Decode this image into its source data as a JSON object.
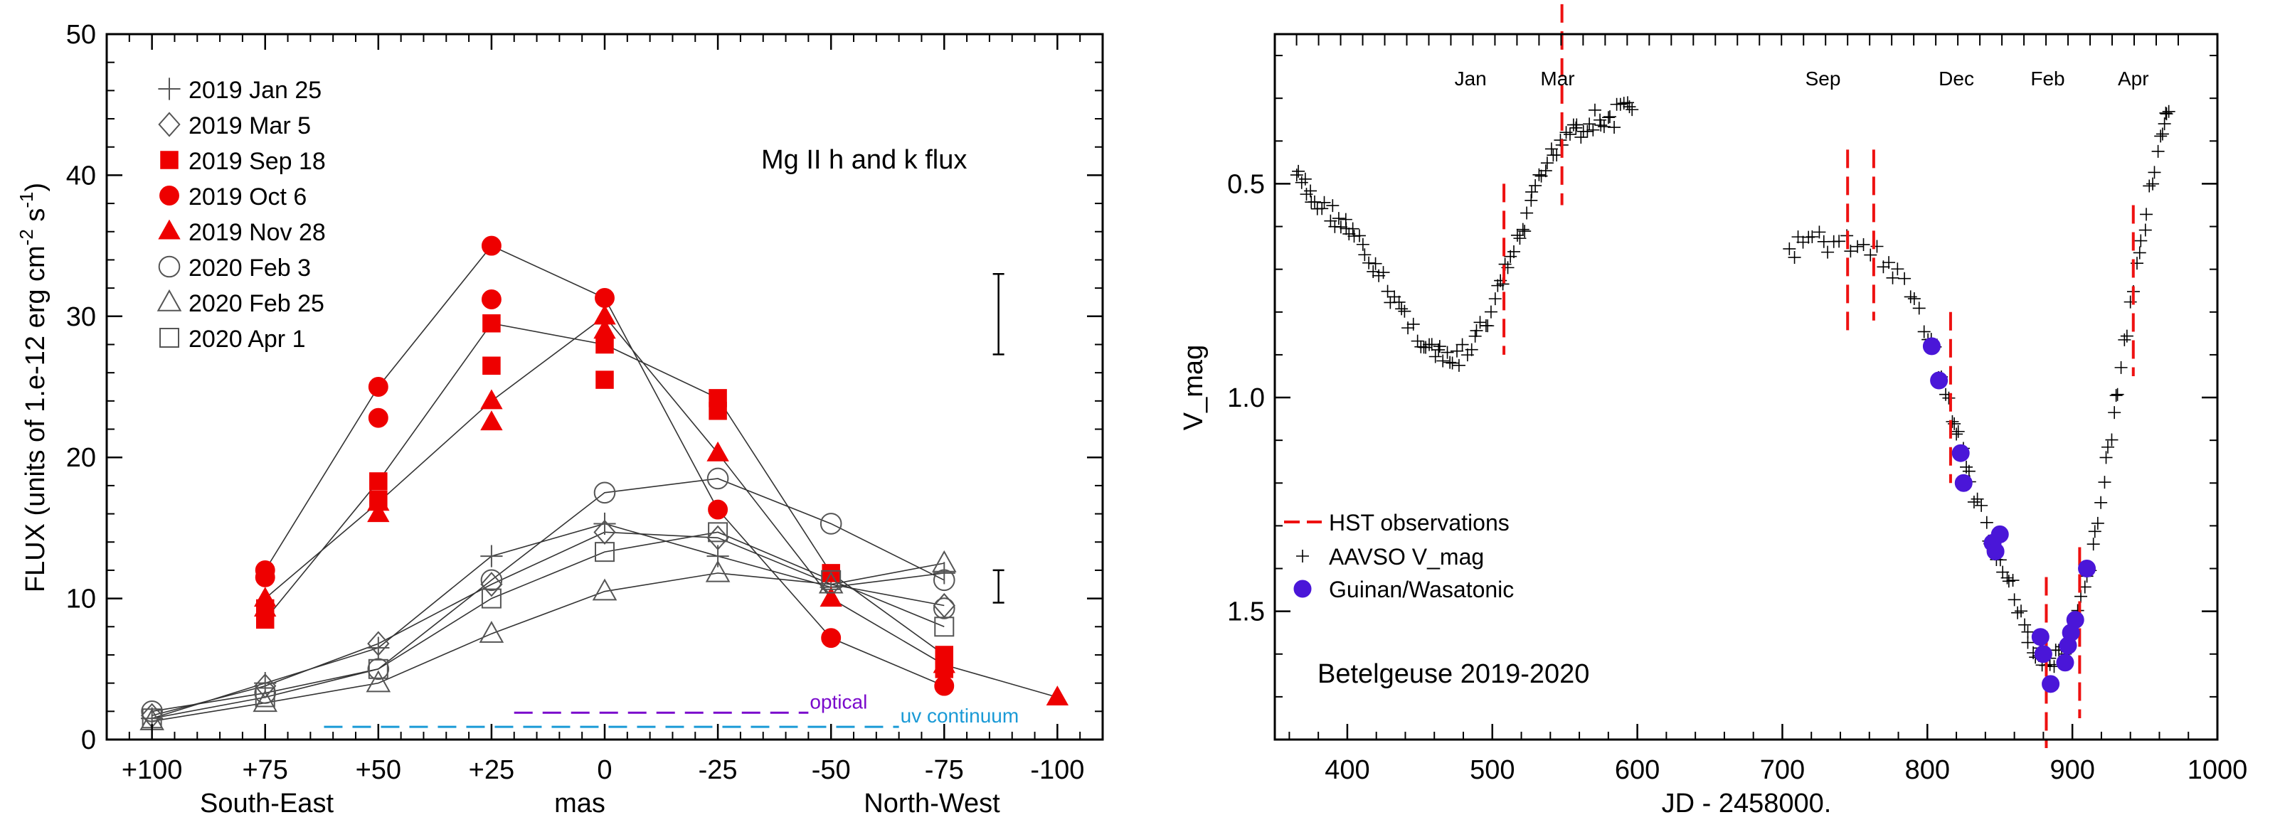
{
  "chart_data": [
    {
      "type": "scatter",
      "title": "Mg II h and k flux",
      "xlabel": "mas",
      "ylabel": "FLUX (units of 1.e-12 erg cm",
      "ylabel_sup1": "-2",
      "ylabel_mid": " s",
      "ylabel_sup2": "-1",
      "ylabel_end": ")",
      "xlim": [
        110,
        -110
      ],
      "ylim": [
        0,
        50
      ],
      "x_ticks": [
        100,
        75,
        50,
        25,
        0,
        -25,
        -50,
        -75,
        -100
      ],
      "x_tick_labels": [
        "+100",
        "+75",
        "+50",
        "+25",
        "0",
        "-25",
        "-50",
        "-75",
        "-100"
      ],
      "y_ticks": [
        0,
        10,
        20,
        30,
        40,
        50
      ],
      "y_tick_labels": [
        "0",
        "10",
        "20",
        "30",
        "40",
        "50"
      ],
      "direction_labels": [
        "South-East",
        "North-West"
      ],
      "series": [
        {
          "name": "2019 Jan 25",
          "marker": "plus",
          "color": "#555555",
          "filled": false,
          "x": [
            100,
            75,
            50,
            25,
            0,
            -25,
            -50,
            -75
          ],
          "y": [
            1.5,
            4.0,
            6.5,
            13.0,
            15.3,
            13.0,
            10.8,
            11.8
          ]
        },
        {
          "name": "2019 Mar 5",
          "marker": "diamond",
          "color": "#555555",
          "filled": false,
          "x": [
            100,
            75,
            50,
            25,
            0,
            -25,
            -50,
            -75
          ],
          "y": [
            1.7,
            3.8,
            6.8,
            11.0,
            14.7,
            14.3,
            11.0,
            9.5
          ]
        },
        {
          "name": "2019 Sep 18",
          "marker": "square",
          "color": "#ee0000",
          "filled": true,
          "x": [
            75,
            75,
            50,
            50,
            25,
            25,
            0,
            0,
            -25,
            -25,
            -50,
            -75,
            -75
          ],
          "y": [
            8.5,
            9.3,
            18.3,
            17.0,
            29.5,
            26.5,
            28.0,
            25.5,
            24.2,
            23.3,
            11.8,
            6.0,
            5.0
          ]
        },
        {
          "name": "2019 Oct 6",
          "marker": "circle",
          "color": "#ee0000",
          "filled": true,
          "x": [
            75,
            75,
            50,
            50,
            25,
            25,
            0,
            -25,
            -50,
            -75
          ],
          "y": [
            12.0,
            11.5,
            25.0,
            22.8,
            35.0,
            31.2,
            31.3,
            16.3,
            7.2,
            3.8
          ]
        },
        {
          "name": "2019 Nov 28",
          "marker": "triangle",
          "color": "#ee0000",
          "filled": true,
          "x": [
            75,
            75,
            50,
            50,
            25,
            25,
            0,
            0,
            -25,
            -50,
            -75,
            -100
          ],
          "y": [
            10.0,
            9.3,
            16.8,
            16.0,
            24.0,
            22.5,
            30.0,
            29.0,
            20.3,
            10.0,
            5.3,
            3.0
          ]
        },
        {
          "name": "2020 Feb 3",
          "marker": "circle",
          "color": "#555555",
          "filled": false,
          "x": [
            100,
            75,
            50,
            25,
            0,
            -25,
            -50,
            -75,
            -75
          ],
          "y": [
            2.0,
            3.3,
            5.0,
            11.3,
            17.5,
            18.5,
            15.3,
            11.3,
            9.3
          ]
        },
        {
          "name": "2020 Feb 25",
          "marker": "triangle",
          "color": "#555555",
          "filled": false,
          "x": [
            100,
            75,
            50,
            25,
            0,
            -25,
            -50,
            -75
          ],
          "y": [
            1.3,
            2.6,
            4.0,
            7.5,
            10.5,
            11.8,
            11.0,
            12.5
          ]
        },
        {
          "name": "2020 Apr 1",
          "marker": "square",
          "color": "#555555",
          "filled": false,
          "x": [
            100,
            75,
            50,
            25,
            0,
            -25,
            -50,
            -75
          ],
          "y": [
            1.5,
            3.0,
            5.0,
            10.0,
            13.3,
            14.7,
            11.3,
            8.0
          ]
        }
      ],
      "error_bars": [
        {
          "x": -87,
          "y_low": 27.3,
          "y_high": 33.0
        },
        {
          "x": -87,
          "y_low": 9.7,
          "y_high": 12.0
        }
      ],
      "reference_lines": [
        {
          "label": "optical",
          "color": "#7a0acc",
          "x_start": 20,
          "x_end": -45,
          "y": 1.9
        },
        {
          "label": "uv continuum",
          "color": "#1a9ad6",
          "x_start": 62,
          "x_end": -65,
          "y": 0.9
        }
      ]
    },
    {
      "type": "scatter",
      "title": "Betelgeuse 2019-2020",
      "xlabel": "JD - 2458000.",
      "ylabel": "V_mag",
      "xlim": [
        350,
        1000
      ],
      "ylim": [
        1.8,
        0.15
      ],
      "x_ticks": [
        400,
        500,
        600,
        700,
        800,
        900,
        1000
      ],
      "x_tick_labels": [
        "400",
        "500",
        "600",
        "700",
        "800",
        "900",
        "1000"
      ],
      "y_ticks": [
        0.5,
        1.0,
        1.5
      ],
      "y_tick_labels": [
        "0.5",
        "1.0",
        "1.5"
      ],
      "month_labels": [
        {
          "label": "Jan",
          "jd": 485
        },
        {
          "label": "Mar",
          "jd": 545
        },
        {
          "label": "Sep",
          "jd": 728
        },
        {
          "label": "Dec",
          "jd": 820
        },
        {
          "label": "Feb",
          "jd": 883
        },
        {
          "label": "Apr",
          "jd": 942
        }
      ],
      "hst_observations": [
        {
          "jd": 508,
          "v_top": 0.5,
          "v_bottom": 0.9
        },
        {
          "jd": 548,
          "v_top": 0.08,
          "v_bottom": 0.55
        },
        {
          "jd": 745,
          "v_top": 0.42,
          "v_bottom": 0.85
        },
        {
          "jd": 763,
          "v_top": 0.42,
          "v_bottom": 0.82
        },
        {
          "jd": 816,
          "v_top": 0.8,
          "v_bottom": 1.2
        },
        {
          "jd": 882,
          "v_top": 1.42,
          "v_bottom": 1.82
        },
        {
          "jd": 905,
          "v_top": 1.35,
          "v_bottom": 1.75
        },
        {
          "jd": 942,
          "v_top": 0.55,
          "v_bottom": 0.95
        }
      ],
      "aavso_v_mag": {
        "jd": [
          365,
          372,
          380,
          390,
          398,
          405,
          415,
          425,
          435,
          445,
          455,
          462,
          470,
          480,
          490,
          500,
          508,
          515,
          522,
          530,
          538,
          546,
          555,
          563,
          571,
          580,
          588,
          597,
          705,
          718,
          732,
          748,
          765,
          780,
          795,
          805,
          815,
          822,
          830,
          840,
          848,
          857,
          865,
          872,
          880,
          887,
          895,
          902,
          910,
          918,
          925,
          932,
          940,
          948,
          955,
          962,
          967
        ],
        "v": [
          0.48,
          0.52,
          0.55,
          0.57,
          0.6,
          0.63,
          0.68,
          0.73,
          0.78,
          0.84,
          0.88,
          0.9,
          0.92,
          0.9,
          0.86,
          0.8,
          0.72,
          0.66,
          0.6,
          0.52,
          0.45,
          0.4,
          0.36,
          0.37,
          0.35,
          0.36,
          0.33,
          0.31,
          0.66,
          0.63,
          0.64,
          0.64,
          0.66,
          0.72,
          0.8,
          0.9,
          1.02,
          1.1,
          1.2,
          1.3,
          1.38,
          1.43,
          1.52,
          1.58,
          1.62,
          1.62,
          1.6,
          1.55,
          1.42,
          1.28,
          1.12,
          0.98,
          0.8,
          0.62,
          0.48,
          0.38,
          0.33
        ]
      },
      "guinan_wasatonic": {
        "jd": [
          803,
          808,
          823,
          825,
          845,
          847,
          850,
          878,
          880,
          885,
          895,
          897,
          899,
          902,
          910
        ],
        "v": [
          0.88,
          0.96,
          1.13,
          1.2,
          1.34,
          1.36,
          1.32,
          1.56,
          1.6,
          1.67,
          1.62,
          1.58,
          1.55,
          1.52,
          1.4
        ]
      },
      "legend": [
        "HST observations",
        "AAVSO V_mag",
        "Guinan/Wasatonic"
      ],
      "colors": {
        "hst": "#ee1111",
        "aavso": "#000000",
        "guinan": "#4a16d8"
      }
    }
  ]
}
